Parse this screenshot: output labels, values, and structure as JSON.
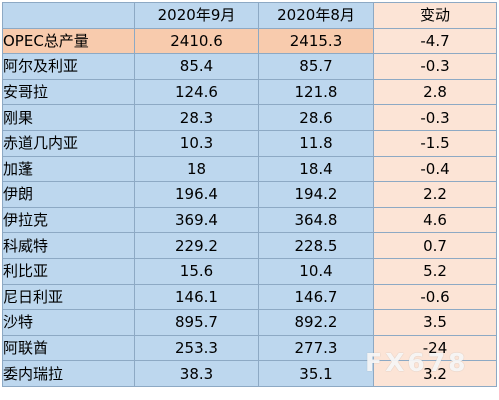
{
  "table": {
    "headers": [
      "",
      "2020年9月",
      "2020年8月",
      "变动"
    ],
    "rows": [
      {
        "name": "OPEC总产量",
        "sep": "2410.6",
        "aug": "2415.3",
        "change": "-4.7"
      },
      {
        "name": "阿尔及利亚",
        "sep": "85.4",
        "aug": "85.7",
        "change": "-0.3"
      },
      {
        "name": "安哥拉",
        "sep": "124.6",
        "aug": "121.8",
        "change": "2.8"
      },
      {
        "name": "刚果",
        "sep": "28.3",
        "aug": "28.6",
        "change": "-0.3"
      },
      {
        "name": "赤道几内亚",
        "sep": "10.3",
        "aug": "11.8",
        "change": "-1.5"
      },
      {
        "name": "加蓬",
        "sep": "18",
        "aug": "18.4",
        "change": "-0.4"
      },
      {
        "name": "伊朗",
        "sep": "196.4",
        "aug": "194.2",
        "change": "2.2"
      },
      {
        "name": "伊拉克",
        "sep": "369.4",
        "aug": "364.8",
        "change": "4.6"
      },
      {
        "name": "科威特",
        "sep": "229.2",
        "aug": "228.5",
        "change": "0.7"
      },
      {
        "name": "利比亚",
        "sep": "15.6",
        "aug": "10.4",
        "change": "5.2"
      },
      {
        "name": "尼日利亚",
        "sep": "146.1",
        "aug": "146.7",
        "change": "-0.6"
      },
      {
        "name": "沙特",
        "sep": "895.7",
        "aug": "892.2",
        "change": "3.5"
      },
      {
        "name": "阿联酋",
        "sep": "253.3",
        "aug": "277.3",
        "change": "-24"
      },
      {
        "name": "委内瑞拉",
        "sep": "38.3",
        "aug": "35.1",
        "change": "3.2"
      }
    ]
  },
  "watermark": "FX678"
}
